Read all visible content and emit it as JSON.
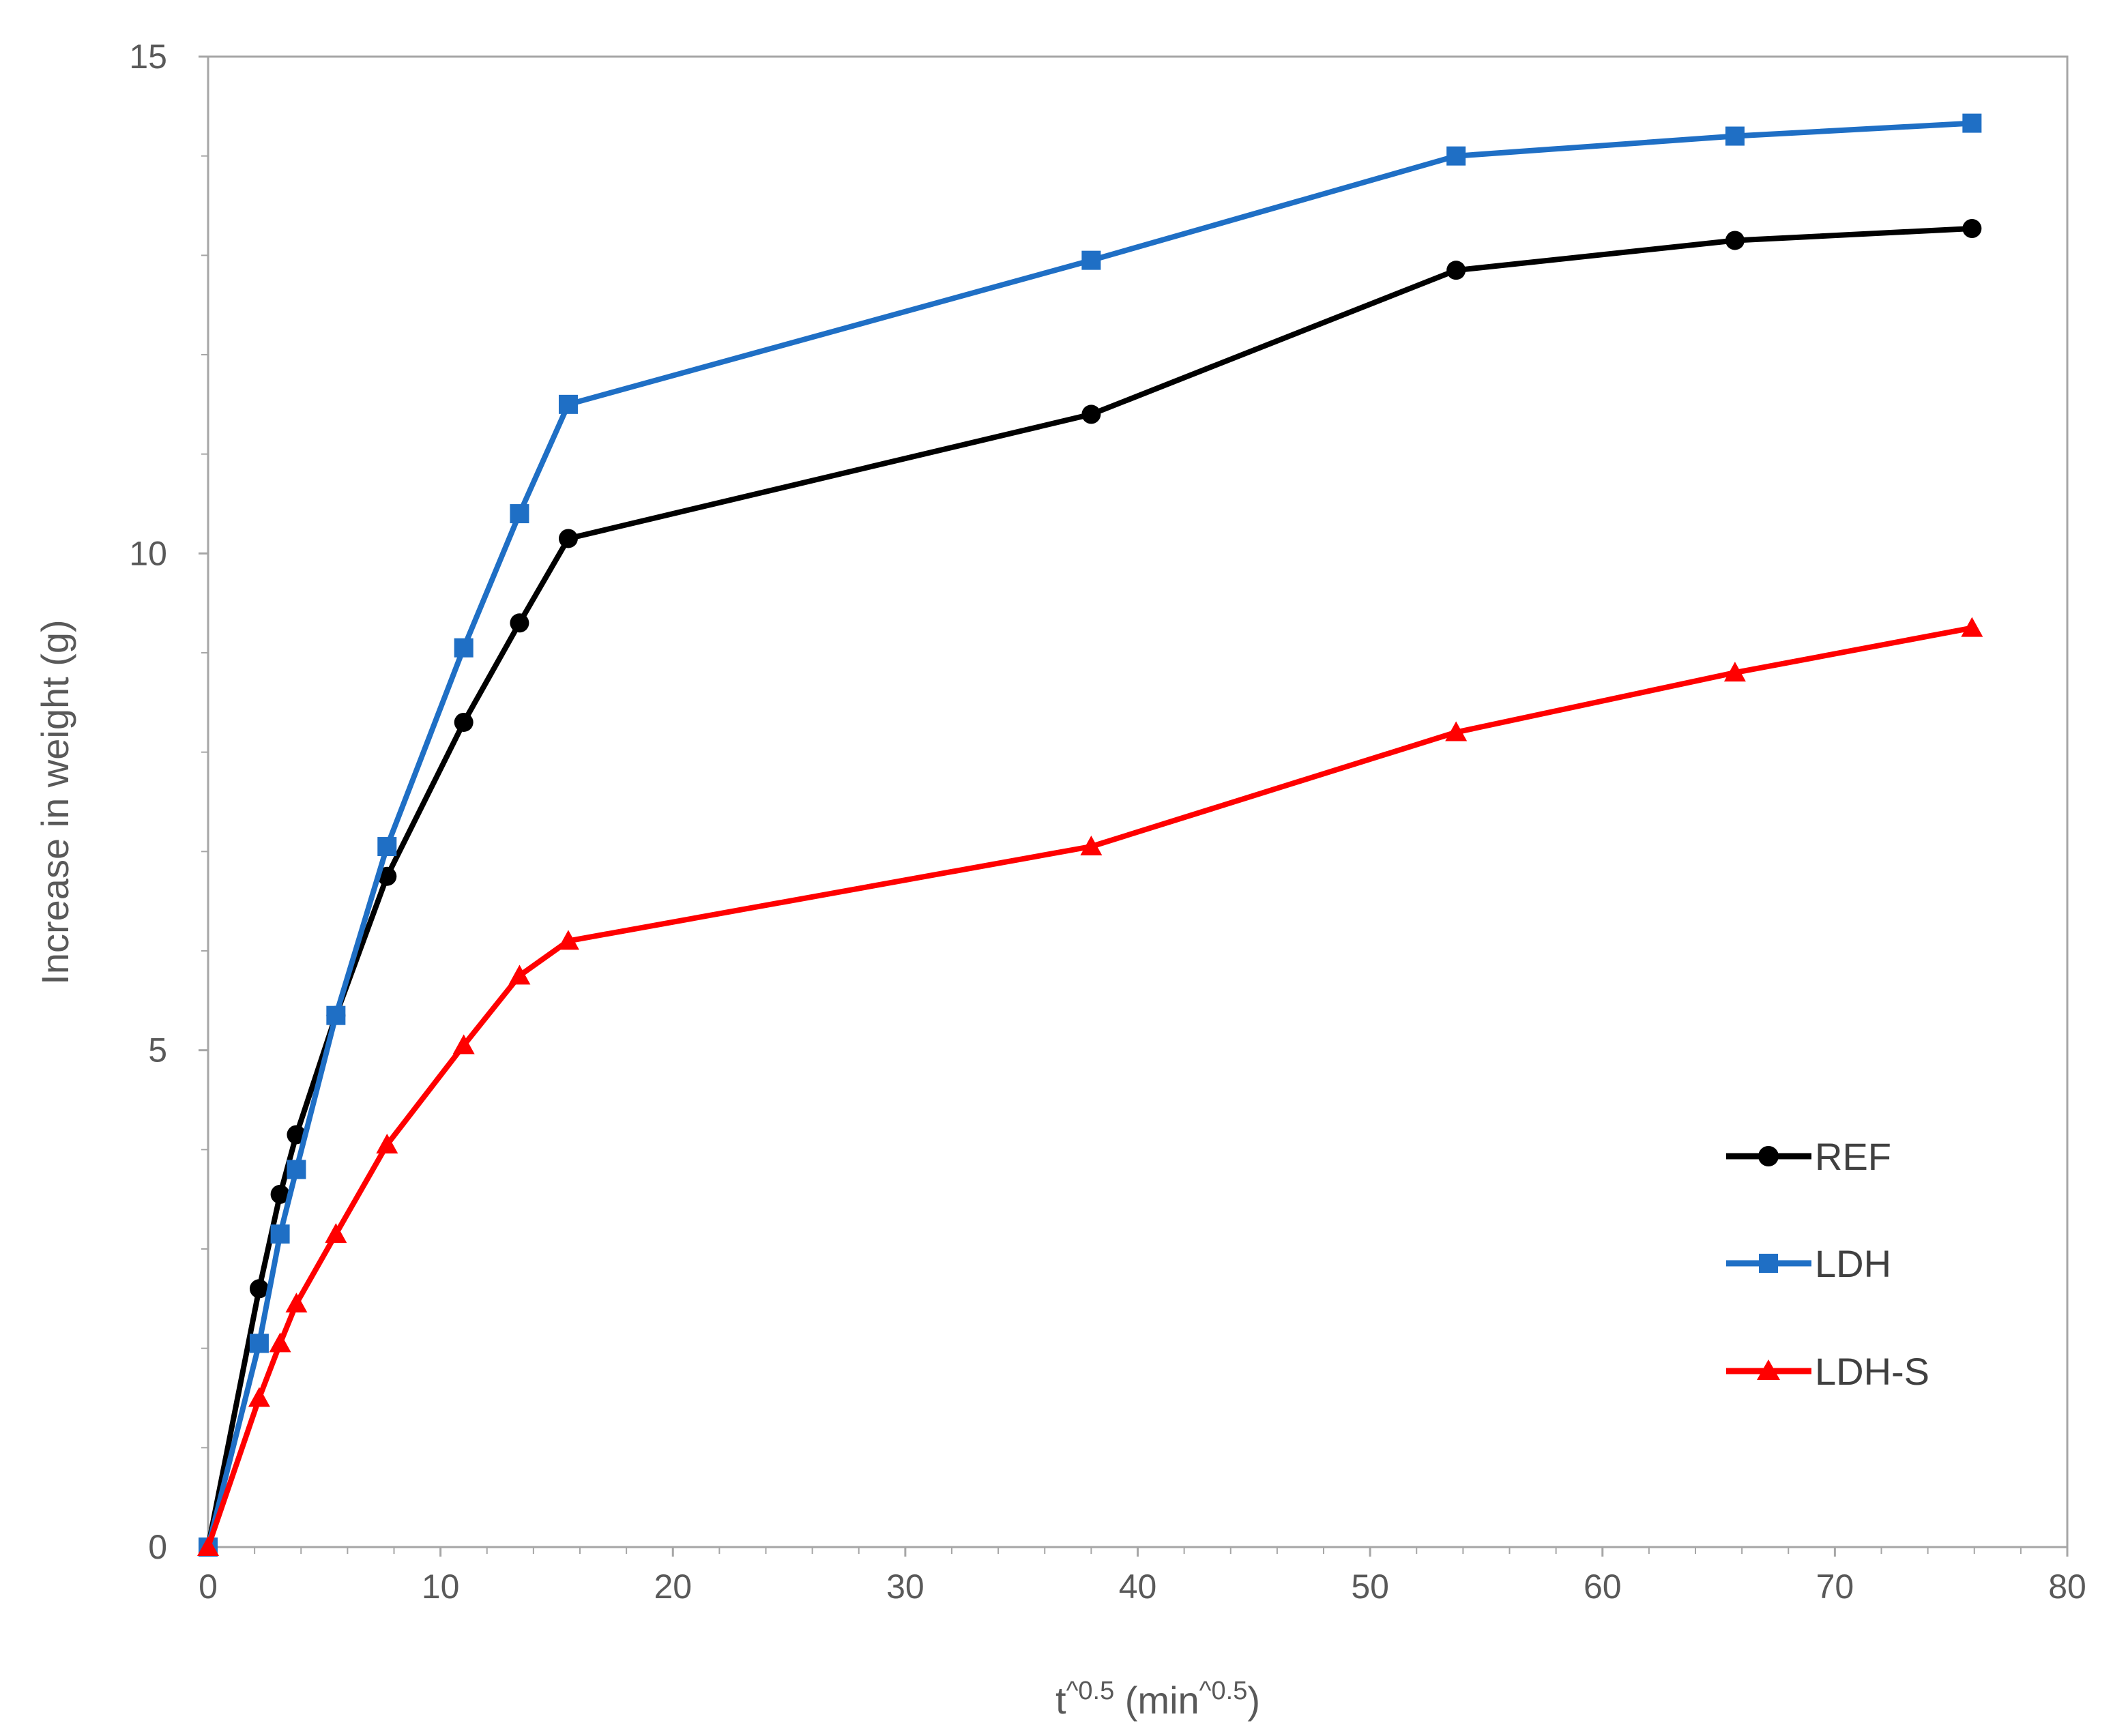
{
  "chart_data": {
    "type": "line",
    "title": "",
    "xlabel": {
      "base": "t",
      "base_sup": "^0.5",
      "unit_open": " (min",
      "unit_sup": "^0.5",
      "unit_close": ")"
    },
    "ylabel": "Increase in weight (g)",
    "xlim": [
      0,
      80
    ],
    "ylim": [
      0,
      15
    ],
    "x_ticks": [
      0,
      10,
      20,
      30,
      40,
      50,
      60,
      70,
      80
    ],
    "x_tick_labels": [
      "0",
      "10",
      "20",
      "30",
      "40",
      "50",
      "60",
      "70",
      "80"
    ],
    "y_ticks": [
      0,
      5,
      10,
      15
    ],
    "y_tick_labels": [
      "0",
      "5",
      "10",
      "15"
    ],
    "x_minor_step": 2,
    "y_minor_step": 1,
    "grid": false,
    "legend_position": "lower-right",
    "x": [
      0,
      2.2,
      3.1,
      3.8,
      5.5,
      7.7,
      11.0,
      13.4,
      15.5,
      38.0,
      53.7,
      65.7,
      75.9
    ],
    "series": [
      {
        "name": "REF",
        "color": "#000000",
        "marker": "circle",
        "values": [
          0,
          2.6,
          3.55,
          4.15,
          5.35,
          6.75,
          8.3,
          9.3,
          10.15,
          11.4,
          12.85,
          13.15,
          13.27
        ]
      },
      {
        "name": "LDH",
        "color": "#1f6fc5",
        "marker": "square",
        "values": [
          0,
          2.05,
          3.15,
          3.8,
          5.35,
          7.05,
          9.05,
          10.4,
          11.5,
          12.95,
          14.0,
          14.2,
          14.33
        ]
      },
      {
        "name": "LDH-S",
        "color": "#ff0000",
        "marker": "triangle",
        "values": [
          0,
          1.5,
          2.05,
          2.45,
          3.15,
          4.05,
          5.05,
          5.75,
          6.1,
          7.05,
          8.2,
          8.8,
          9.25
        ]
      }
    ]
  }
}
